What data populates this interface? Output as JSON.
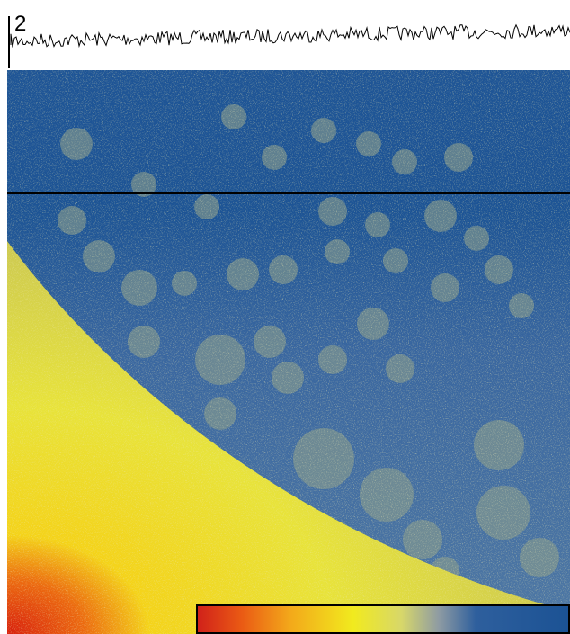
{
  "panel": {
    "label": "2"
  }
}
